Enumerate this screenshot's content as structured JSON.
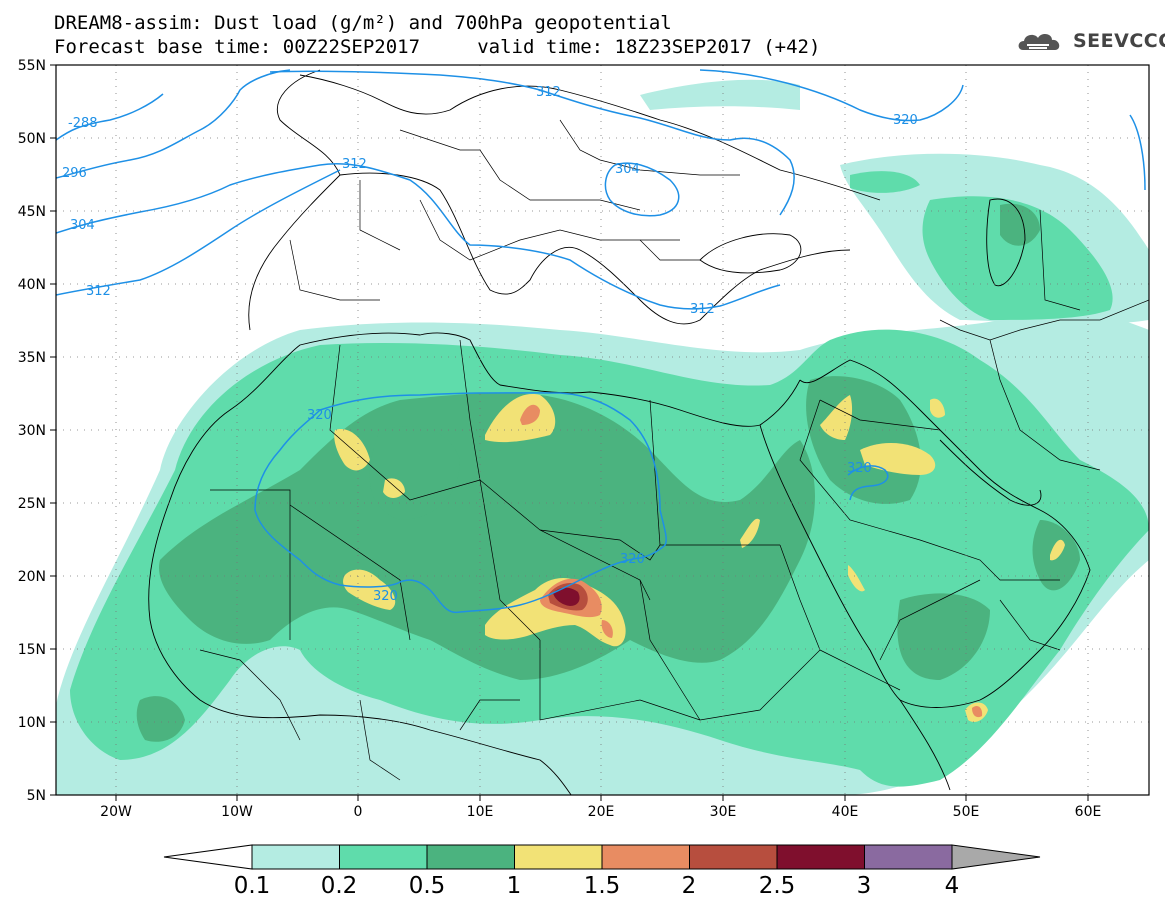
{
  "title": {
    "line1": "DREAM8-assim: Dust load (g/m²) and 700hPa geopotential",
    "line2": "Forecast base time: 00Z22SEP2017     valid time: 18Z23SEP2017 (+42)"
  },
  "logo": {
    "text": "SEEVCCC",
    "icon": "cloud-logo-icon"
  },
  "map": {
    "lat_range": [
      5,
      55
    ],
    "lon_range": [
      -25,
      65
    ],
    "lat_labels": [
      "55N",
      "50N",
      "45N",
      "40N",
      "35N",
      "30N",
      "25N",
      "20N",
      "15N",
      "10N",
      "5N"
    ],
    "lon_labels": [
      "20W",
      "10W",
      "0",
      "10E",
      "20E",
      "30E",
      "40E",
      "50E",
      "60E"
    ],
    "ocean_color": "#ffffff",
    "contour_color": "#1e90e6",
    "contour_labels": [
      "-288",
      "296",
      "304",
      "312",
      "312",
      "312",
      "304",
      "312",
      "320",
      "320",
      "320",
      "320",
      "320"
    ]
  },
  "colorbar": {
    "labels": [
      "0.1",
      "0.2",
      "0.5",
      "1",
      "1.5",
      "2",
      "2.5",
      "3",
      "4"
    ],
    "colors": [
      "#b4ece2",
      "#5fdcab",
      "#4bb37f",
      "#f2e276",
      "#e88c62",
      "#b74e3e",
      "#7f0f2d",
      "#8a6aa0",
      "#a9a9a9"
    ]
  }
}
